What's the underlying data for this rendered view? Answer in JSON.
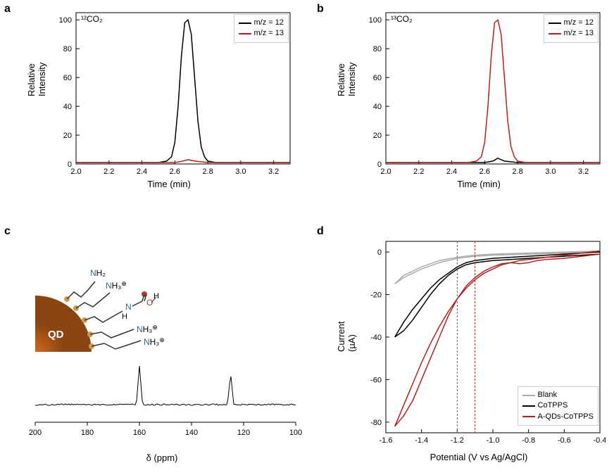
{
  "panel_a": {
    "label": "a",
    "annotation": "¹²CO₂",
    "type": "line",
    "xlabel": "Time (min)",
    "ylabel": "Relative Intensity",
    "xlim": [
      2.0,
      3.3
    ],
    "ylim": [
      0,
      105
    ],
    "xticks": [
      2.0,
      2.2,
      2.4,
      2.6,
      2.8,
      3.0,
      3.2
    ],
    "yticks": [
      0,
      20,
      40,
      60,
      80,
      100
    ],
    "label_fontsize": 13,
    "tick_fontsize": 11,
    "background_color": "#ffffff",
    "legend": [
      {
        "label": "m/z = 12",
        "color": "#000000"
      },
      {
        "label": "m/z = 13",
        "color": "#b22222"
      }
    ],
    "series": [
      {
        "name": "mz12",
        "color": "#000000",
        "stroke_width": 1.5,
        "x": [
          2.0,
          2.1,
          2.2,
          2.3,
          2.4,
          2.5,
          2.55,
          2.58,
          2.6,
          2.62,
          2.64,
          2.66,
          2.68,
          2.7,
          2.72,
          2.74,
          2.76,
          2.78,
          2.8,
          2.85,
          2.9,
          3.0,
          3.1,
          3.2,
          3.3
        ],
        "y": [
          1,
          1,
          1,
          1,
          1,
          1,
          2,
          5,
          15,
          40,
          75,
          98,
          100,
          90,
          60,
          30,
          12,
          5,
          2,
          1,
          1,
          1,
          1,
          1,
          1
        ]
      },
      {
        "name": "mz13",
        "color": "#b22222",
        "stroke_width": 1.5,
        "x": [
          2.0,
          2.5,
          2.6,
          2.65,
          2.68,
          2.72,
          2.8,
          3.3
        ],
        "y": [
          1,
          1,
          1,
          2,
          3,
          2,
          1,
          1
        ]
      }
    ]
  },
  "panel_b": {
    "label": "b",
    "annotation": "¹³CO₂",
    "type": "line",
    "xlabel": "Time (min)",
    "ylabel": "Relative Intensity",
    "xlim": [
      2.0,
      3.3
    ],
    "ylim": [
      0,
      105
    ],
    "xticks": [
      2.0,
      2.2,
      2.4,
      2.6,
      2.8,
      3.0,
      3.2
    ],
    "yticks": [
      0,
      20,
      40,
      60,
      80,
      100
    ],
    "label_fontsize": 13,
    "tick_fontsize": 11,
    "background_color": "#ffffff",
    "legend": [
      {
        "label": "m/z = 12",
        "color": "#000000"
      },
      {
        "label": "m/z = 13",
        "color": "#b22222"
      }
    ],
    "series": [
      {
        "name": "mz12",
        "color": "#000000",
        "stroke_width": 1.5,
        "x": [
          2.0,
          2.5,
          2.6,
          2.65,
          2.68,
          2.72,
          2.8,
          3.3
        ],
        "y": [
          1,
          1,
          1,
          2,
          4,
          2,
          1,
          1
        ]
      },
      {
        "name": "mz13",
        "color": "#b22222",
        "stroke_width": 1.5,
        "x": [
          2.0,
          2.1,
          2.2,
          2.3,
          2.4,
          2.5,
          2.55,
          2.58,
          2.6,
          2.62,
          2.64,
          2.66,
          2.68,
          2.7,
          2.72,
          2.74,
          2.76,
          2.78,
          2.8,
          2.85,
          2.9,
          3.0,
          3.1,
          3.2,
          3.3
        ],
        "y": [
          1,
          1,
          1,
          1,
          1,
          1,
          2,
          5,
          15,
          40,
          75,
          98,
          100,
          90,
          60,
          30,
          12,
          5,
          2,
          1,
          1,
          1,
          1,
          1,
          1
        ]
      }
    ]
  },
  "panel_c": {
    "label": "c",
    "type": "line",
    "xlabel": "δ (ppm)",
    "xlim": [
      200,
      100
    ],
    "xticks": [
      200,
      180,
      160,
      140,
      120,
      100
    ],
    "label_fontsize": 13,
    "tick_fontsize": 11,
    "background_color": "#ffffff",
    "peaks": [
      {
        "x": 160,
        "h": 55
      },
      {
        "x": 125,
        "h": 45
      }
    ],
    "molecule": {
      "qd_label": "QD",
      "qd_color": "#a0522d",
      "n_color": "#1e6f9f",
      "h_color": "#555",
      "o_color": "#c0392b",
      "s_color": "#c8a050",
      "labels": [
        "NH₂",
        "NH₃⁺",
        "NH₃⁺",
        "NH₃⁺"
      ],
      "carbamate": "N-C(=O)-OH"
    }
  },
  "panel_d": {
    "label": "d",
    "type": "line",
    "xlabel": "Potential (V vs Ag/AgCl)",
    "ylabel": "Current (µA)",
    "xlim": [
      -1.6,
      -0.4
    ],
    "ylim": [
      -85,
      5
    ],
    "xticks": [
      -1.6,
      -1.4,
      -1.2,
      -1.0,
      -0.8,
      -0.6,
      -0.4
    ],
    "yticks": [
      -80,
      -60,
      -40,
      -20,
      0
    ],
    "label_fontsize": 13,
    "tick_fontsize": 11,
    "background_color": "#ffffff",
    "vlines": [
      {
        "x": -1.2,
        "color": "#666",
        "dash": "3,2"
      },
      {
        "x": -1.1,
        "color": "#b22222",
        "dash": "3,2"
      }
    ],
    "legend": [
      {
        "label": "Blank",
        "color": "#aaaaaa"
      },
      {
        "label": "CoTPPS",
        "color": "#000000"
      },
      {
        "label": "A-QDs-CoTPPS",
        "color": "#b22222"
      }
    ],
    "series": [
      {
        "name": "blank_fwd",
        "color": "#aaaaaa",
        "stroke_width": 1.5,
        "x": [
          -0.4,
          -0.6,
          -0.8,
          -1.0,
          -1.1,
          -1.2,
          -1.3,
          -1.4,
          -1.5,
          -1.55
        ],
        "y": [
          0,
          -0.5,
          -1,
          -1.5,
          -2,
          -3,
          -5,
          -8,
          -12,
          -15
        ]
      },
      {
        "name": "blank_rev",
        "color": "#aaaaaa",
        "stroke_width": 1.5,
        "x": [
          -1.55,
          -1.5,
          -1.4,
          -1.3,
          -1.2,
          -1.1,
          -1.0,
          -0.8,
          -0.6,
          -0.4
        ],
        "y": [
          -15,
          -11,
          -7,
          -4,
          -2.5,
          -1.5,
          -1,
          -0.5,
          0,
          0.5
        ]
      },
      {
        "name": "cotpps_fwd",
        "color": "#000000",
        "stroke_width": 1.5,
        "x": [
          -0.4,
          -0.6,
          -0.7,
          -0.8,
          -0.9,
          -1.0,
          -1.1,
          -1.15,
          -1.2,
          -1.25,
          -1.3,
          -1.35,
          -1.4,
          -1.45,
          -1.5,
          -1.55
        ],
        "y": [
          -1,
          -2,
          -2.5,
          -3,
          -3.5,
          -4,
          -5,
          -6,
          -8,
          -11,
          -15,
          -20,
          -26,
          -32,
          -37,
          -40
        ]
      },
      {
        "name": "cotpps_rev",
        "color": "#000000",
        "stroke_width": 1.5,
        "x": [
          -1.55,
          -1.5,
          -1.45,
          -1.4,
          -1.35,
          -1.3,
          -1.25,
          -1.2,
          -1.15,
          -1.1,
          -1.0,
          -0.9,
          -0.8,
          -0.7,
          -0.6,
          -0.5,
          -0.4
        ],
        "y": [
          -40,
          -33,
          -27,
          -22,
          -17,
          -13,
          -10,
          -7,
          -5,
          -4,
          -3,
          -2.5,
          -2,
          -1.5,
          -1,
          -0.5,
          0
        ]
      },
      {
        "name": "aqd_fwd",
        "color": "#b22222",
        "stroke_width": 1.5,
        "x": [
          -0.4,
          -0.5,
          -0.6,
          -0.7,
          -0.75,
          -0.8,
          -0.85,
          -0.9,
          -0.95,
          -1.0,
          -1.05,
          -1.1,
          -1.15,
          -1.2,
          -1.25,
          -1.3,
          -1.35,
          -1.4,
          -1.45,
          -1.5,
          -1.55
        ],
        "y": [
          -1,
          -2,
          -3,
          -3.5,
          -4,
          -5,
          -5.5,
          -5,
          -5.5,
          -7,
          -9,
          -12,
          -16,
          -22,
          -30,
          -40,
          -50,
          -60,
          -70,
          -77,
          -82
        ]
      },
      {
        "name": "aqd_rev",
        "color": "#b22222",
        "stroke_width": 1.5,
        "x": [
          -1.55,
          -1.5,
          -1.45,
          -1.4,
          -1.35,
          -1.3,
          -1.25,
          -1.2,
          -1.15,
          -1.1,
          -1.05,
          -1.0,
          -0.95,
          -0.9,
          -0.85,
          -0.8,
          -0.7,
          -0.6,
          -0.5,
          -0.4
        ],
        "y": [
          -82,
          -72,
          -62,
          -52,
          -43,
          -35,
          -28,
          -22,
          -17,
          -13,
          -10,
          -8,
          -6,
          -5,
          -4,
          -3.5,
          -2.5,
          -1.5,
          -0.5,
          0.5
        ]
      }
    ]
  }
}
